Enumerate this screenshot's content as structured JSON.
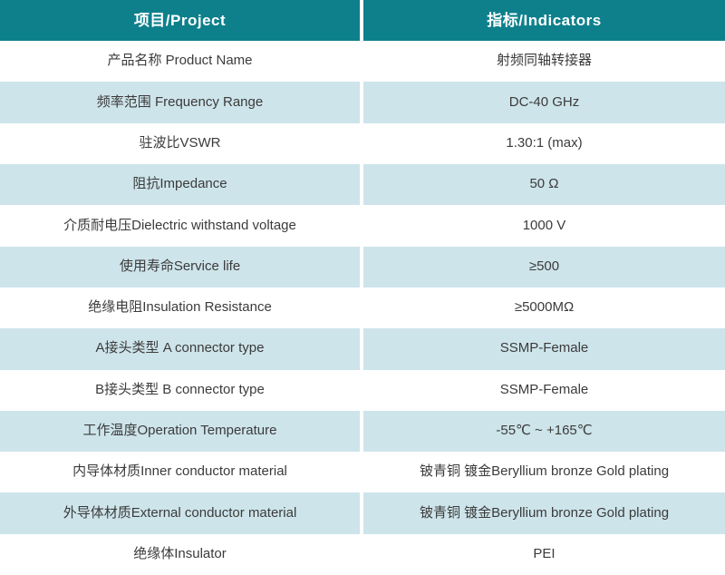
{
  "table": {
    "header": {
      "project": "项目/Project",
      "indicator": "指标/Indicators"
    },
    "rows": [
      {
        "project": "产品名称 Product Name",
        "indicator": "射频同轴转接器"
      },
      {
        "project": "频率范围 Frequency Range",
        "indicator": "DC-40 GHz"
      },
      {
        "project": "驻波比VSWR",
        "indicator": "1.30:1 (max)"
      },
      {
        "project": "阻抗Impedance",
        "indicator": "50 Ω"
      },
      {
        "project": "介质耐电压Dielectric withstand voltage",
        "indicator": "1000 V"
      },
      {
        "project": "使用寿命Service life",
        "indicator": "≥500"
      },
      {
        "project": "绝缘电阻Insulation Resistance",
        "indicator": "≥5000MΩ"
      },
      {
        "project": "A接头类型 A connector type",
        "indicator": "SSMP-Female"
      },
      {
        "project": "B接头类型 B connector type",
        "indicator": "SSMP-Female"
      },
      {
        "project": "工作温度Operation Temperature",
        "indicator": "-55℃ ~ +165℃"
      },
      {
        "project": "内导体材质Inner conductor material",
        "indicator": "铍青铜 镀金Beryllium bronze Gold plating"
      },
      {
        "project": "外导体材质External conductor material",
        "indicator": "铍青铜 镀金Beryllium bronze Gold plating"
      },
      {
        "project": "绝缘体Insulator",
        "indicator": "PEI"
      }
    ]
  },
  "colors": {
    "header_bg": "#0d808c",
    "header_text": "#ffffff",
    "row_bg": "#ffffff",
    "alt_row_bg": "#cde4ea",
    "body_text": "#3b3b3b",
    "divider": "#ffffff"
  }
}
